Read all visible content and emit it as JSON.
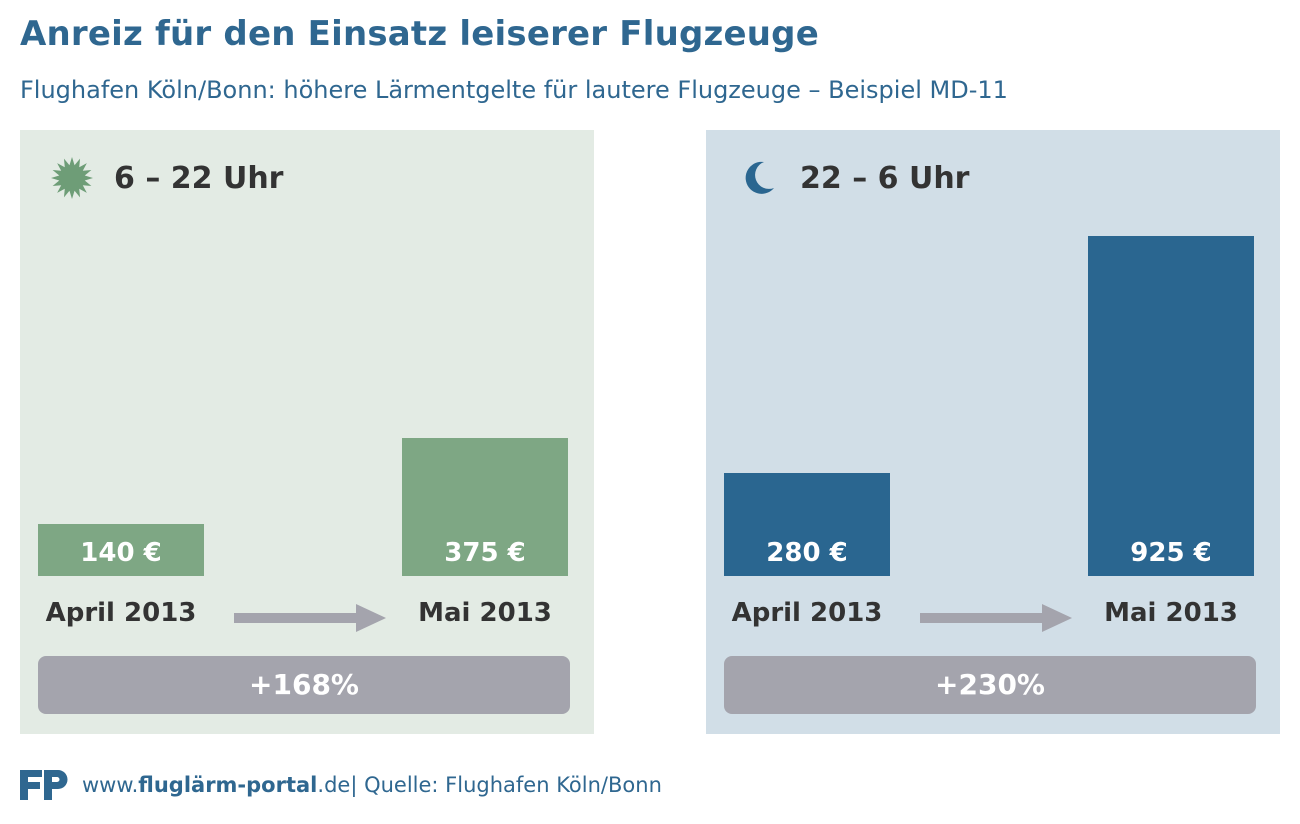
{
  "title": "Anreiz für den Einsatz leiserer Flugzeuge",
  "subtitle": "Flughafen Köln/Bonn: höhere Lärmentgelte für lautere Flugzeuge – Beispiel MD-11",
  "colors": {
    "title": "#2f6790",
    "day_bar": "#7ea784",
    "night_bar": "#2a6690",
    "change_box": "#a4a4ad",
    "arrow": "#a4a4ad"
  },
  "chart_data": [
    {
      "type": "bar",
      "panel_title": "6 – 22 Uhr",
      "icon": "sun-icon",
      "categories": [
        "April 2013",
        "Mai 2013"
      ],
      "values": [
        140,
        375
      ],
      "value_labels": [
        "140 €",
        "375 €"
      ],
      "change_label": "+168%",
      "ylim": [
        0,
        1000
      ]
    },
    {
      "type": "bar",
      "panel_title": "22 – 6 Uhr",
      "icon": "moon-icon",
      "categories": [
        "April 2013",
        "Mai 2013"
      ],
      "values": [
        280,
        925
      ],
      "value_labels": [
        "280 €",
        "925 €"
      ],
      "change_label": "+230%",
      "ylim": [
        0,
        1000
      ]
    }
  ],
  "footer": {
    "site_prefix": "www.",
    "site_bold": "fluglärm-portal",
    "site_suffix": ".de",
    "source": " | Quelle: Flughafen Köln/Bonn"
  }
}
